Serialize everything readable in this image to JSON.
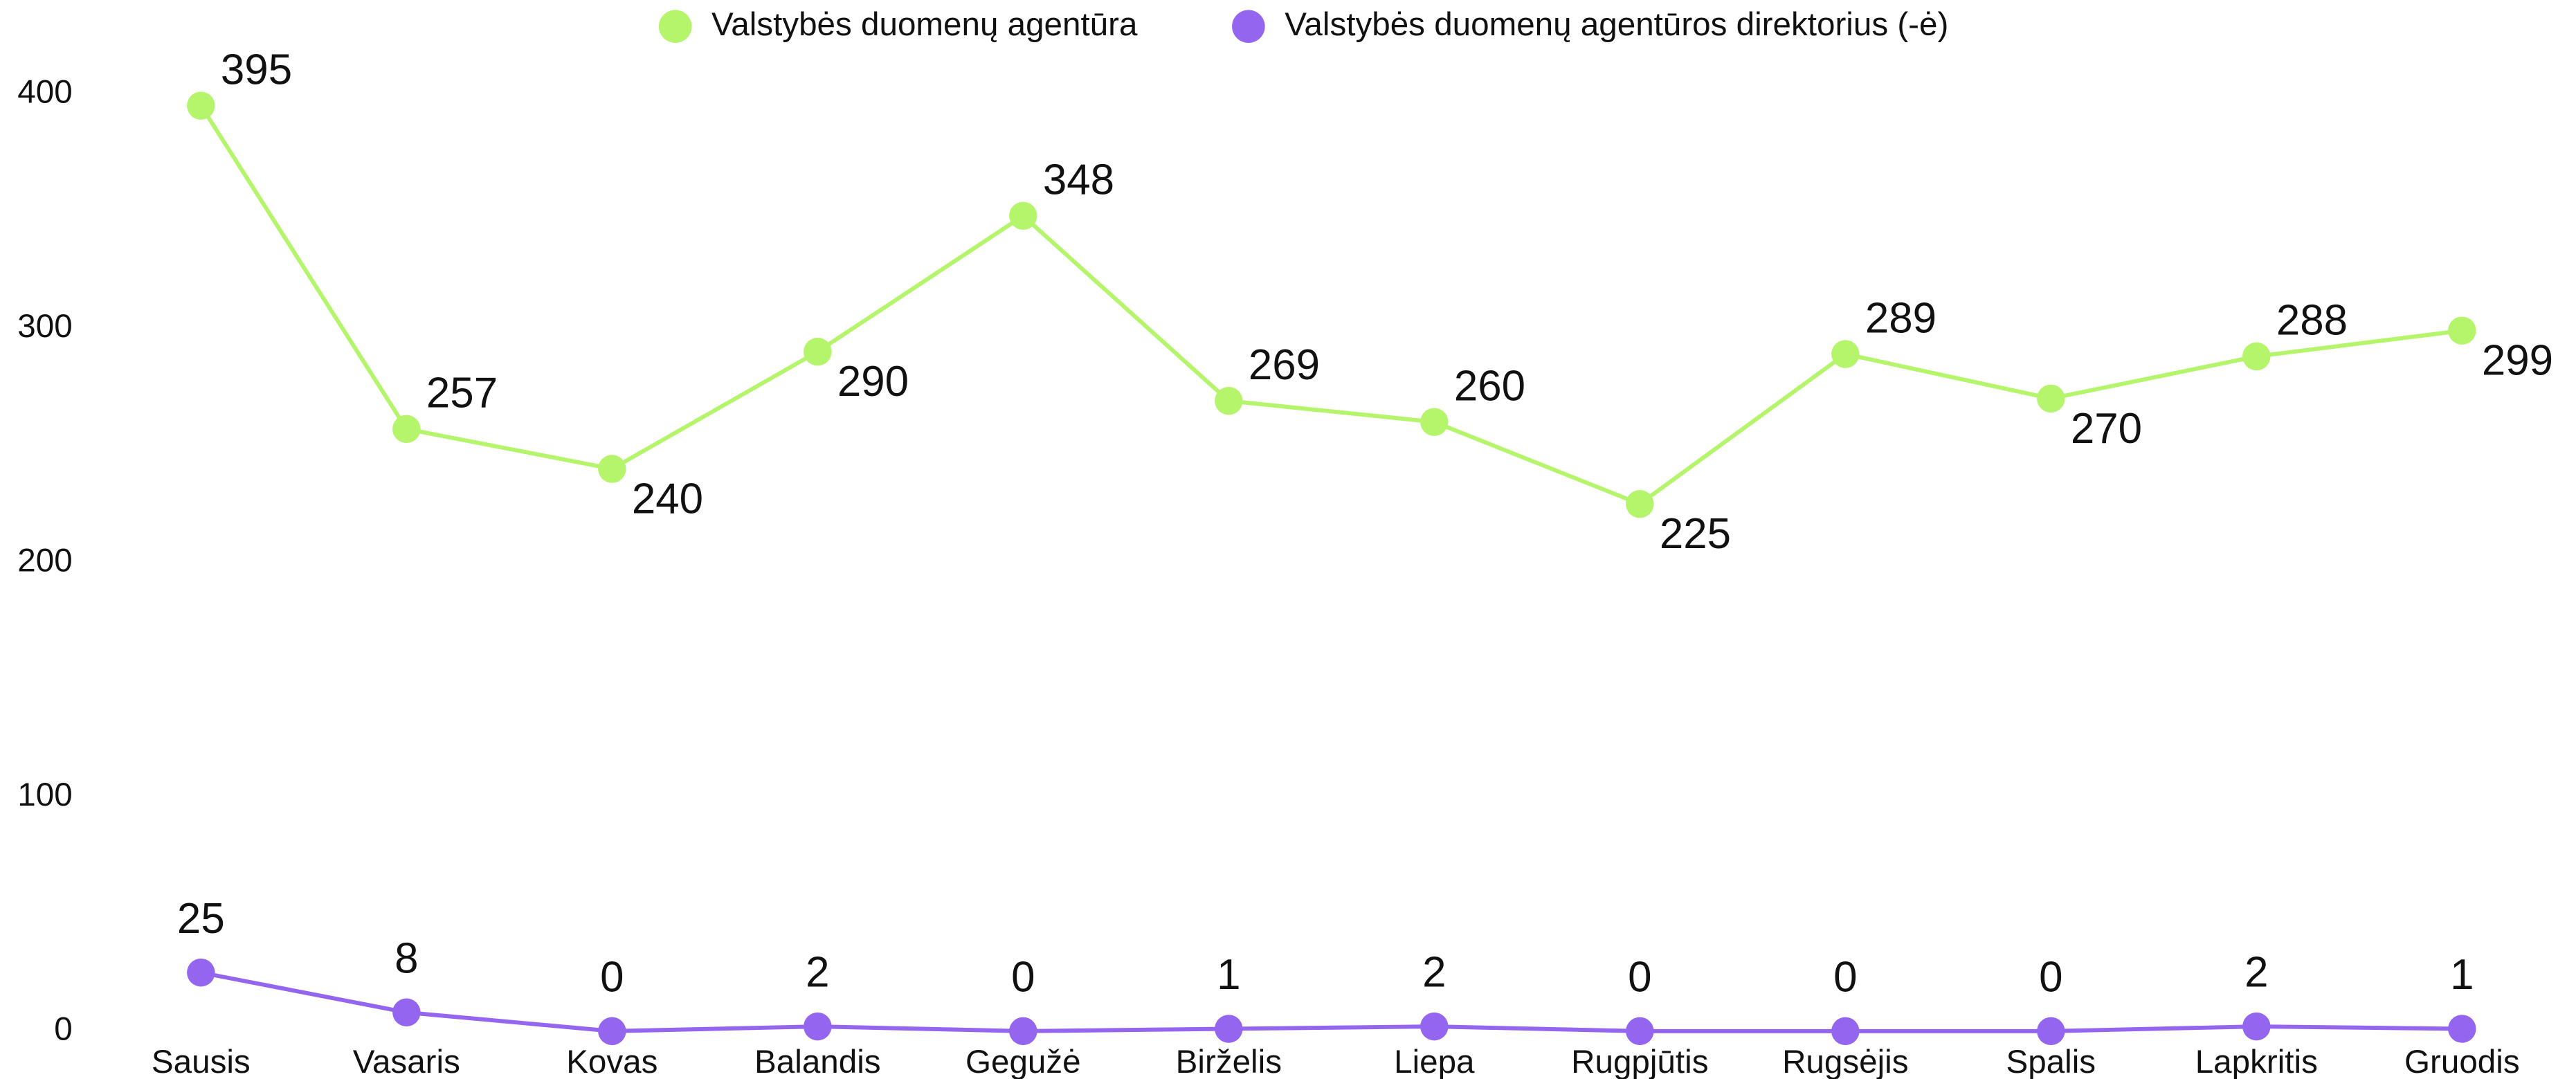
{
  "chart_data": {
    "type": "line",
    "categories": [
      "Sausis",
      "Vasaris",
      "Kovas",
      "Balandis",
      "Gegužė",
      "Birželis",
      "Liepa",
      "Rugpjūtis",
      "Rugsėjis",
      "Spalis",
      "Lapkritis",
      "Gruodis"
    ],
    "series": [
      {
        "name": "Valstybės duomenų agentūra",
        "color": "#b5f56b",
        "values": [
          395,
          257,
          240,
          290,
          348,
          269,
          260,
          225,
          289,
          270,
          288,
          299
        ]
      },
      {
        "name": "Valstybės duomenų agentūros direktorius (-ė)",
        "color": "#9466f0",
        "values": [
          25,
          8,
          0,
          2,
          0,
          1,
          2,
          0,
          0,
          0,
          2,
          1
        ]
      }
    ],
    "ylim": [
      0,
      400
    ],
    "yticks": [
      0,
      100,
      200,
      300,
      400
    ],
    "grid": false,
    "legend": "top"
  }
}
